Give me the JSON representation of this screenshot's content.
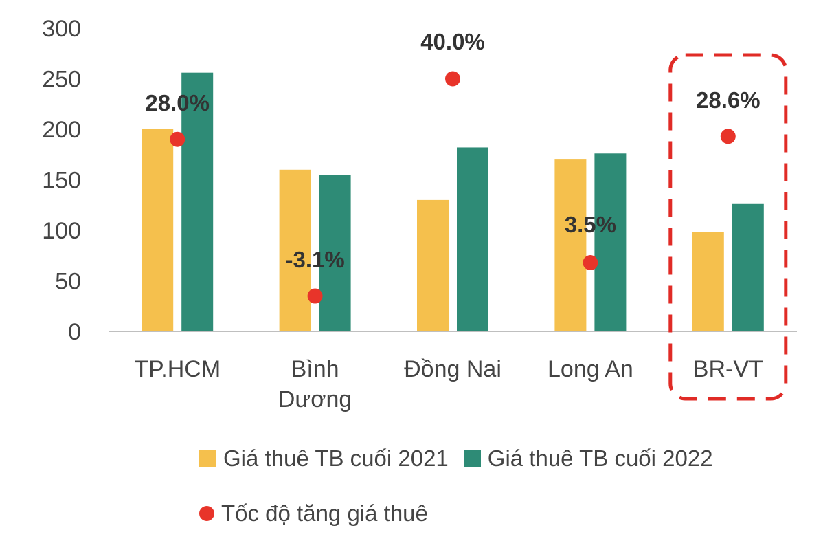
{
  "chart_data": {
    "type": "bar",
    "categories": [
      "TP.HCM",
      "Bình Dương",
      "Đồng Nai",
      "Long An",
      "BR-VT"
    ],
    "series": [
      {
        "name": "Giá thuê TB cuối 2021",
        "values": [
          200,
          160,
          130,
          170,
          98
        ]
      },
      {
        "name": "Giá thuê TB cuối 2022",
        "values": [
          256,
          155,
          182,
          176,
          126
        ]
      }
    ],
    "growth_series": {
      "name": "Tốc độ tăng giá thuê",
      "type": "scatter",
      "values": [
        28.0,
        -3.1,
        40.0,
        3.5,
        28.6
      ],
      "labels": [
        "28.0%",
        "-3.1%",
        "40.0%",
        "3.5%",
        "28.6%"
      ],
      "plot_y": [
        190,
        35,
        250,
        68,
        193
      ]
    },
    "y_ticks": [
      "0",
      "50",
      "100",
      "150",
      "200",
      "250",
      "300"
    ],
    "ylim": [
      0,
      300
    ],
    "highlighted_category": "BR-VT",
    "grid": false,
    "legend_position": "bottom",
    "colors": {
      "series_2021": "#F5C04D",
      "series_2022": "#2E8B76",
      "growth": "#E8342A",
      "highlight_border": "#E02B26",
      "axis": "#BFBFBF"
    }
  },
  "legend": {
    "items": [
      {
        "label": "Giá thuê TB cuối 2021",
        "shape": "square",
        "color": "#F5C04D"
      },
      {
        "label": "Giá thuê TB cuối 2022",
        "shape": "square",
        "color": "#2E8B76"
      },
      {
        "label": "Tốc độ tăng giá thuê",
        "shape": "circle",
        "color": "#E8342A"
      }
    ]
  }
}
